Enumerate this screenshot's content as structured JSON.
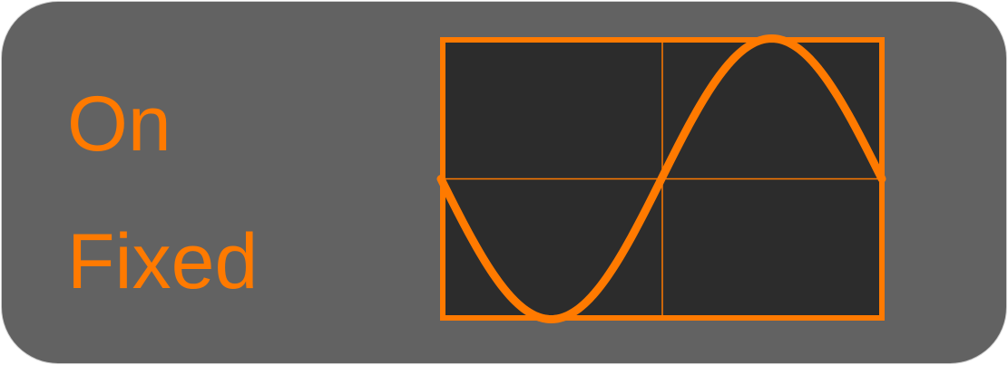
{
  "control": {
    "state_label": "On",
    "mode_label": "Fixed"
  },
  "scope": {
    "waveform": "sine",
    "cycles": 1,
    "starts_inverted": true
  },
  "colors": {
    "panel_background": "#626262",
    "accent": "#ff7a00",
    "scope_background": "#2c2c2c"
  }
}
